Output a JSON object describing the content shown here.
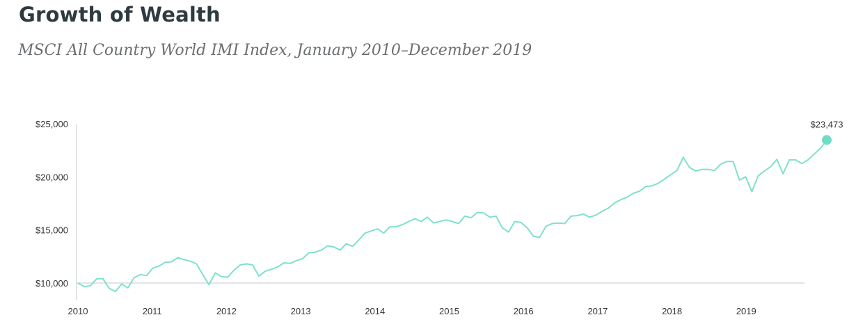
{
  "header": {
    "title": "Growth of Wealth",
    "subtitle": "MSCI All Country World IMI Index, January 2010–December 2019"
  },
  "colors": {
    "line": "#7fe0cd",
    "marker": "#6fdcc6",
    "axis": "#c8c8c8",
    "text": "#333333"
  },
  "chart_data": {
    "type": "line",
    "title": "Growth of Wealth",
    "subtitle": "MSCI All Country World IMI Index, January 2010–December 2019",
    "xlabel": "",
    "ylabel": "",
    "x_ticks": [
      "2010",
      "2011",
      "2012",
      "2013",
      "2014",
      "2015",
      "2016",
      "2017",
      "2018",
      "2019"
    ],
    "y_ticks": [
      "$10,000",
      "$15,000",
      "$20,000",
      "$25,000"
    ],
    "y_tick_values": [
      10000,
      15000,
      20000,
      25000
    ],
    "xlim": [
      2010,
      2020
    ],
    "ylim": [
      9000,
      25000
    ],
    "grid": false,
    "end_label": "$23,473",
    "series": [
      {
        "values": [
          10000,
          9650,
          9750,
          10400,
          10400,
          9500,
          9200,
          9900,
          9550,
          10500,
          10800,
          10700,
          11400,
          11600,
          11950,
          12000,
          12400,
          12200,
          12050,
          11800,
          10800,
          9850,
          10950,
          10600,
          10550,
          11200,
          11700,
          11800,
          11700,
          10650,
          11100,
          11300,
          11500,
          11900,
          11850,
          12100,
          12300,
          12850,
          12900,
          13100,
          13500,
          13400,
          13100,
          13700,
          13450,
          14050,
          14700,
          14900,
          15100,
          14700,
          15300,
          15300,
          15500,
          15800,
          16050,
          15800,
          16200,
          15650,
          15800,
          15950,
          15800,
          15600,
          16300,
          16150,
          16650,
          16600,
          16200,
          16300,
          15200,
          14800,
          15800,
          15700,
          15200,
          14400,
          14300,
          15350,
          15600,
          15650,
          15600,
          16300,
          16350,
          16500,
          16200,
          16400,
          16750,
          17050,
          17550,
          17850,
          18100,
          18450,
          18650,
          19100,
          19150,
          19400,
          19800,
          20200,
          20600,
          21850,
          20900,
          20550,
          20700,
          20700,
          20600,
          21200,
          21450,
          21450,
          19700,
          20000,
          18600,
          20100,
          20550,
          20950,
          21650,
          20300,
          21600,
          21600,
          21250,
          21600,
          22150,
          22700,
          23473
        ]
      }
    ]
  }
}
